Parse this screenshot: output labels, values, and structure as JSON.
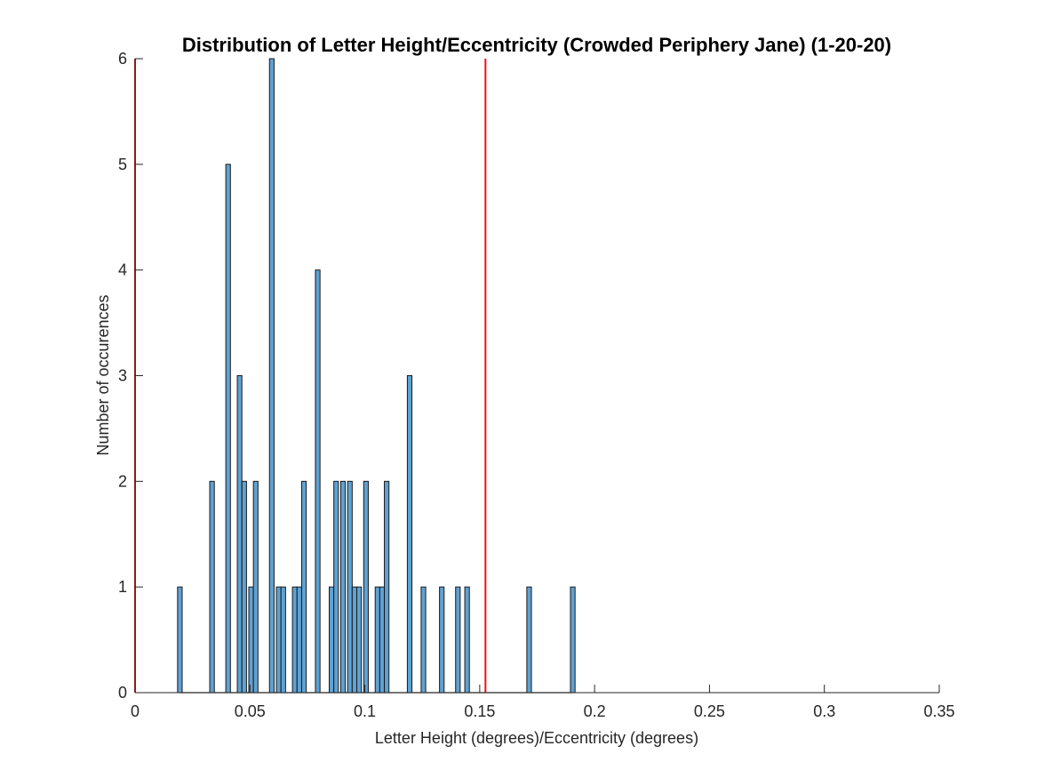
{
  "chart_data": {
    "type": "bar",
    "title": "Distribution of Letter Height/Eccentricity (Crowded Periphery Jane) (1-20-20)",
    "xlabel": "Letter Height (degrees)/Eccentricity (degrees)",
    "ylabel": "Number of occurences",
    "xlim": [
      0,
      0.35
    ],
    "ylim": [
      0,
      6
    ],
    "xticks": [
      "0",
      "0.05",
      "0.1",
      "0.15",
      "0.2",
      "0.25",
      "0.3",
      "0.35"
    ],
    "yticks": [
      "0",
      "1",
      "2",
      "3",
      "4",
      "5",
      "6"
    ],
    "grid": false,
    "bar_color": "#5fa2d3",
    "edge_color": "#1a1a1a",
    "vline_color": "#ee1111",
    "vlines": [
      0.0,
      0.1525
    ],
    "bin_width": 0.002,
    "bins": [
      {
        "x": 0.0195,
        "count": 1
      },
      {
        "x": 0.0335,
        "count": 2
      },
      {
        "x": 0.0405,
        "count": 5
      },
      {
        "x": 0.0455,
        "count": 3
      },
      {
        "x": 0.0475,
        "count": 2
      },
      {
        "x": 0.0505,
        "count": 1
      },
      {
        "x": 0.0525,
        "count": 2
      },
      {
        "x": 0.0595,
        "count": 6
      },
      {
        "x": 0.0625,
        "count": 1
      },
      {
        "x": 0.0645,
        "count": 1
      },
      {
        "x": 0.0695,
        "count": 1
      },
      {
        "x": 0.0715,
        "count": 1
      },
      {
        "x": 0.0735,
        "count": 2
      },
      {
        "x": 0.0795,
        "count": 4
      },
      {
        "x": 0.0855,
        "count": 1
      },
      {
        "x": 0.0875,
        "count": 2
      },
      {
        "x": 0.0905,
        "count": 2
      },
      {
        "x": 0.0935,
        "count": 2
      },
      {
        "x": 0.0955,
        "count": 1
      },
      {
        "x": 0.0975,
        "count": 1
      },
      {
        "x": 0.1005,
        "count": 2
      },
      {
        "x": 0.1055,
        "count": 1
      },
      {
        "x": 0.1075,
        "count": 1
      },
      {
        "x": 0.1095,
        "count": 2
      },
      {
        "x": 0.1195,
        "count": 3
      },
      {
        "x": 0.1255,
        "count": 1
      },
      {
        "x": 0.1335,
        "count": 1
      },
      {
        "x": 0.1405,
        "count": 1
      },
      {
        "x": 0.1445,
        "count": 1
      },
      {
        "x": 0.1715,
        "count": 1
      },
      {
        "x": 0.1905,
        "count": 1
      }
    ],
    "baseline_range": [
      0.0195,
      0.1905
    ]
  }
}
